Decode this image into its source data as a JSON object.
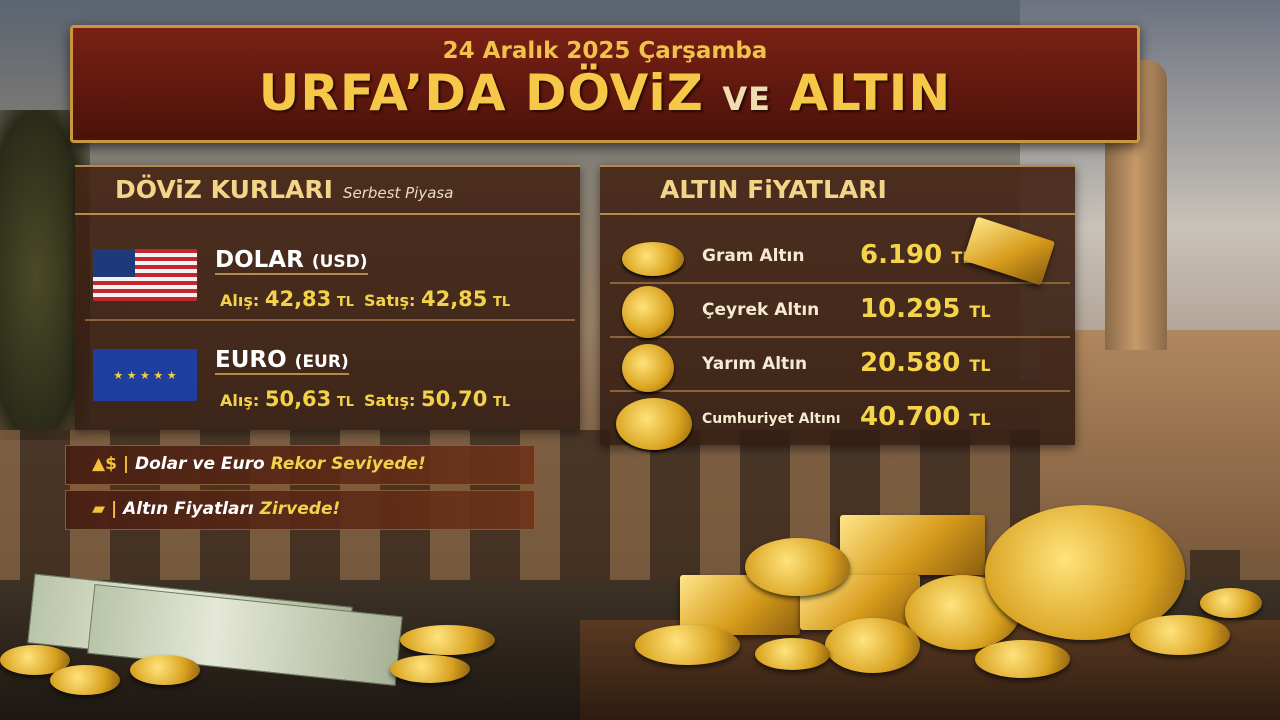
{
  "header": {
    "date": "24 Aralık 2025 Çarşamba",
    "title_part1": "URFA’DA DÖViZ",
    "title_ve": "VE",
    "title_part2": "ALTIN"
  },
  "doviz": {
    "title": "DÖViZ KURLARI",
    "subtitle": "Serbest Piyasa",
    "buy_label": "Alış:",
    "sell_label": "Satış:",
    "unit": "TL",
    "items": [
      {
        "name": "DOLAR",
        "code": "(USD)",
        "buy": "42,83",
        "sell": "42,85",
        "icon": "us-flag-icon"
      },
      {
        "name": "EURO",
        "code": "(EUR)",
        "buy": "50,63",
        "sell": "50,70",
        "icon": "eu-flag-icon"
      }
    ]
  },
  "altin": {
    "title": "ALTIN FiYATLARI",
    "unit": "TL",
    "items": [
      {
        "name": "Gram Altın",
        "price": "6.190"
      },
      {
        "name": "Çeyrek Altın",
        "price": "10.295"
      },
      {
        "name": "Yarım Altın",
        "price": "20.580"
      },
      {
        "name": "Cumhuriyet Altını",
        "price": "40.700"
      }
    ]
  },
  "tickers": [
    {
      "icon": "dollar-up-icon",
      "symbol": "$",
      "text": "Dolar ve Euro",
      "highlight": "Rekor Seviyede!"
    },
    {
      "icon": "gold-bars-icon",
      "text": "Altın Fiyatları",
      "highlight": "Zirvede!"
    }
  ],
  "colors": {
    "gold": "#f6c847",
    "banner": "#6a1a10",
    "panel": "#46261a"
  }
}
